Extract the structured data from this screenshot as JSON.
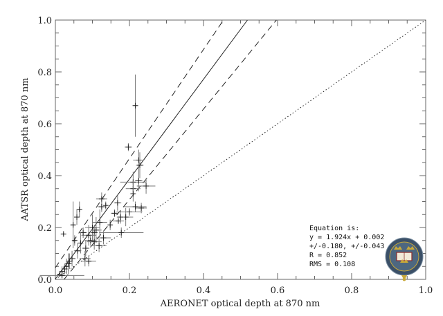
{
  "chart_data": {
    "type": "scatter",
    "title": "",
    "xlabel": "AERONET optical depth at 870 nm",
    "ylabel": "AATSR optical depth at 870 nm",
    "xlim": [
      0.0,
      1.0
    ],
    "ylim": [
      0.0,
      1.0
    ],
    "x_ticks": [
      "0.0",
      "0.2",
      "0.4",
      "0.6",
      "0.8",
      "1.0"
    ],
    "y_ticks": [
      "0.0",
      "0.2",
      "0.4",
      "0.6",
      "0.8",
      "1.0"
    ],
    "grid": false,
    "legend": null,
    "annotation": {
      "lines": [
        "Equation is:",
        "y = 1.924x + 0.002",
        "+/-0.180, +/-0.043",
        "R = 0.852",
        "RMS = 0.108"
      ]
    },
    "fit": {
      "slope": 1.924,
      "intercept": 0.002,
      "slope_err": 0.18,
      "intercept_err": 0.043,
      "R": 0.852,
      "RMS": 0.108
    },
    "reference_lines": [
      {
        "name": "fit",
        "style": "solid",
        "slope": 1.924,
        "intercept": 0.002
      },
      {
        "name": "fit-upper",
        "style": "dashed",
        "slope": 2.104,
        "intercept": 0.045
      },
      {
        "name": "fit-lower",
        "style": "dashed",
        "slope": 1.744,
        "intercept": -0.041
      },
      {
        "name": "one-to-one",
        "style": "dotted",
        "slope": 1.0,
        "intercept": 0.0
      }
    ],
    "points": [
      {
        "x": 0.216,
        "y": 0.67,
        "xerr": 0.003,
        "yerr": 0.12
      },
      {
        "x": 0.197,
        "y": 0.51,
        "xerr": 0.01,
        "yerr": 0.015
      },
      {
        "x": 0.225,
        "y": 0.46,
        "xerr": 0.015,
        "yerr": 0.04
      },
      {
        "x": 0.228,
        "y": 0.44,
        "xerr": 0.01,
        "yerr": 0.05
      },
      {
        "x": 0.21,
        "y": 0.375,
        "xerr": 0.035,
        "yerr": 0.04
      },
      {
        "x": 0.245,
        "y": 0.36,
        "xerr": 0.025,
        "yerr": 0.03
      },
      {
        "x": 0.21,
        "y": 0.35,
        "xerr": 0.02,
        "yerr": 0.03
      },
      {
        "x": 0.225,
        "y": 0.38,
        "xerr": 0.01,
        "yerr": 0.04
      },
      {
        "x": 0.21,
        "y": 0.33,
        "xerr": 0.005,
        "yerr": 0.03
      },
      {
        "x": 0.216,
        "y": 0.28,
        "xerr": 0.03,
        "yerr": 0.02
      },
      {
        "x": 0.232,
        "y": 0.275,
        "xerr": 0.015,
        "yerr": 0.02
      },
      {
        "x": 0.19,
        "y": 0.24,
        "xerr": 0.02,
        "yerr": 0.035
      },
      {
        "x": 0.2,
        "y": 0.26,
        "xerr": 0.035,
        "yerr": 0.015
      },
      {
        "x": 0.168,
        "y": 0.295,
        "xerr": 0.01,
        "yerr": 0.03
      },
      {
        "x": 0.16,
        "y": 0.255,
        "xerr": 0.01,
        "yerr": 0.015
      },
      {
        "x": 0.176,
        "y": 0.24,
        "xerr": 0.01,
        "yerr": 0.025
      },
      {
        "x": 0.17,
        "y": 0.225,
        "xerr": 0.015,
        "yerr": 0.01
      },
      {
        "x": 0.125,
        "y": 0.31,
        "xerr": 0.015,
        "yerr": 0.025
      },
      {
        "x": 0.136,
        "y": 0.285,
        "xerr": 0.005,
        "yerr": 0.015
      },
      {
        "x": 0.148,
        "y": 0.21,
        "xerr": 0.005,
        "yerr": 0.02
      },
      {
        "x": 0.125,
        "y": 0.28,
        "xerr": 0.01,
        "yerr": 0.02
      },
      {
        "x": 0.178,
        "y": 0.18,
        "xerr": 0.06,
        "yerr": 0.02
      },
      {
        "x": 0.13,
        "y": 0.16,
        "xerr": 0.02,
        "yerr": 0.025
      },
      {
        "x": 0.118,
        "y": 0.13,
        "xerr": 0.02,
        "yerr": 0.025
      },
      {
        "x": 0.12,
        "y": 0.22,
        "xerr": 0.02,
        "yerr": 0.05
      },
      {
        "x": 0.1,
        "y": 0.2,
        "xerr": 0.02,
        "yerr": 0.05
      },
      {
        "x": 0.09,
        "y": 0.17,
        "xerr": 0.02,
        "yerr": 0.04
      },
      {
        "x": 0.082,
        "y": 0.12,
        "xerr": 0.01,
        "yerr": 0.03
      },
      {
        "x": 0.095,
        "y": 0.15,
        "xerr": 0.015,
        "yerr": 0.02
      },
      {
        "x": 0.105,
        "y": 0.18,
        "xerr": 0.01,
        "yerr": 0.03
      },
      {
        "x": 0.065,
        "y": 0.27,
        "xerr": 0.003,
        "yerr": 0.03
      },
      {
        "x": 0.058,
        "y": 0.24,
        "xerr": 0.003,
        "yerr": 0.03
      },
      {
        "x": 0.048,
        "y": 0.21,
        "xerr": 0.006,
        "yerr": 0.09
      },
      {
        "x": 0.052,
        "y": 0.15,
        "xerr": 0.005,
        "yerr": 0.02
      },
      {
        "x": 0.022,
        "y": 0.175,
        "xerr": 0.003,
        "yerr": 0.005
      },
      {
        "x": 0.075,
        "y": 0.18,
        "xerr": 0.01,
        "yerr": 0.02
      },
      {
        "x": 0.068,
        "y": 0.14,
        "xerr": 0.005,
        "yerr": 0.04
      },
      {
        "x": 0.06,
        "y": 0.11,
        "xerr": 0.01,
        "yerr": 0.03
      },
      {
        "x": 0.045,
        "y": 0.08,
        "xerr": 0.01,
        "yerr": 0.03
      },
      {
        "x": 0.038,
        "y": 0.07,
        "xerr": 0.01,
        "yerr": 0.03
      },
      {
        "x": 0.03,
        "y": 0.05,
        "xerr": 0.008,
        "yerr": 0.03
      },
      {
        "x": 0.025,
        "y": 0.04,
        "xerr": 0.008,
        "yerr": 0.02
      },
      {
        "x": 0.018,
        "y": 0.03,
        "xerr": 0.005,
        "yerr": 0.02
      },
      {
        "x": 0.012,
        "y": 0.02,
        "xerr": 0.005,
        "yerr": 0.01
      },
      {
        "x": 0.035,
        "y": 0.06,
        "xerr": 0.01,
        "yerr": 0.04
      },
      {
        "x": 0.08,
        "y": 0.08,
        "xerr": 0.015,
        "yerr": 0.03
      },
      {
        "x": 0.09,
        "y": 0.07,
        "xerr": 0.02,
        "yerr": 0.02
      },
      {
        "x": 0.105,
        "y": 0.145,
        "xerr": 0.02,
        "yerr": 0.03
      },
      {
        "x": 0.11,
        "y": 0.19,
        "xerr": 0.015,
        "yerr": 0.05
      },
      {
        "x": 0.018,
        "y": 0.015,
        "xerr": 0.06,
        "yerr": 0.005
      }
    ],
    "logo": "university-of-oxford-crest"
  },
  "axes": {
    "x_label": "AERONET optical depth at 870 nm",
    "y_label": "AATSR optical depth at 870 nm",
    "x_ticks": [
      "0.0",
      "0.2",
      "0.4",
      "0.6",
      "0.8",
      "1.0"
    ],
    "y_ticks": [
      "0.0",
      "0.2",
      "0.4",
      "0.6",
      "0.8",
      "1.0"
    ]
  },
  "annotation": {
    "line1": "Equation is:",
    "line2": "y = 1.924x + 0.002",
    "line3": "+/-0.180, +/-0.043",
    "line4": "R = 0.852",
    "line5": "RMS = 0.108"
  },
  "logo": {
    "name": "university-of-oxford-crest",
    "ring_text": "UNIVERSITY · OF · OXFORD",
    "ring_color": "#3b5068",
    "gold": "#c9a93a"
  }
}
